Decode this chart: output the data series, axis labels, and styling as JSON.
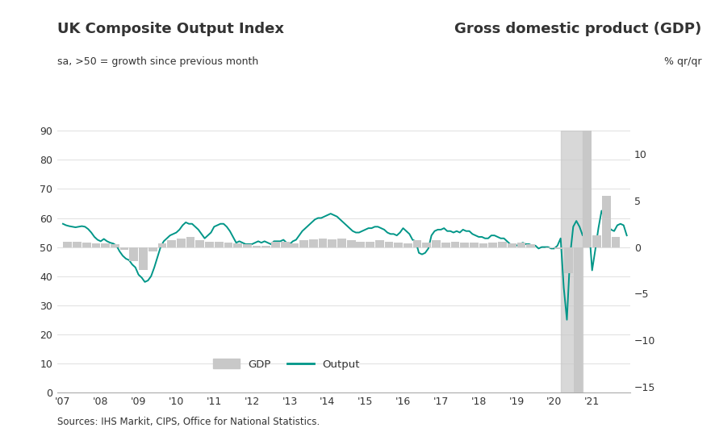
{
  "title_left": "UK Composite Output Index",
  "subtitle_left": "sa, >50 = growth since previous month",
  "title_right": "Gross domestic product (GDP)",
  "subtitle_right": "% qr/qr",
  "source": "Sources: IHS Markit, CIPS, Office for National Statistics.",
  "output_color": "#009688",
  "gdp_color": "#C8C8C8",
  "shade_color": "#C8C8C8",
  "background_color": "#FFFFFF",
  "text_color": "#333333",
  "ylim_left": [
    0,
    90
  ],
  "ylim_right": [
    -15,
    12.5
  ],
  "yticks_left": [
    0,
    10,
    20,
    30,
    40,
    50,
    60,
    70,
    80,
    90
  ],
  "yticks_right": [
    -15,
    -10,
    -5,
    0,
    5,
    10
  ],
  "shade_start": 2020.17,
  "shade_end": 2020.75,
  "xlim": [
    2006.85,
    2022.0
  ],
  "xtick_years": [
    2007,
    2008,
    2009,
    2010,
    2011,
    2012,
    2013,
    2014,
    2015,
    2016,
    2017,
    2018,
    2019,
    2020,
    2021
  ],
  "output_x": [
    2007.0,
    2007.083,
    2007.167,
    2007.25,
    2007.333,
    2007.417,
    2007.5,
    2007.583,
    2007.667,
    2007.75,
    2007.833,
    2007.917,
    2008.0,
    2008.083,
    2008.167,
    2008.25,
    2008.333,
    2008.417,
    2008.5,
    2008.583,
    2008.667,
    2008.75,
    2008.833,
    2008.917,
    2009.0,
    2009.083,
    2009.167,
    2009.25,
    2009.333,
    2009.417,
    2009.5,
    2009.583,
    2009.667,
    2009.75,
    2009.833,
    2009.917,
    2010.0,
    2010.083,
    2010.167,
    2010.25,
    2010.333,
    2010.417,
    2010.5,
    2010.583,
    2010.667,
    2010.75,
    2010.833,
    2010.917,
    2011.0,
    2011.083,
    2011.167,
    2011.25,
    2011.333,
    2011.417,
    2011.5,
    2011.583,
    2011.667,
    2011.75,
    2011.833,
    2011.917,
    2012.0,
    2012.083,
    2012.167,
    2012.25,
    2012.333,
    2012.417,
    2012.5,
    2012.583,
    2012.667,
    2012.75,
    2012.833,
    2012.917,
    2013.0,
    2013.083,
    2013.167,
    2013.25,
    2013.333,
    2013.417,
    2013.5,
    2013.583,
    2013.667,
    2013.75,
    2013.833,
    2013.917,
    2014.0,
    2014.083,
    2014.167,
    2014.25,
    2014.333,
    2014.417,
    2014.5,
    2014.583,
    2014.667,
    2014.75,
    2014.833,
    2014.917,
    2015.0,
    2015.083,
    2015.167,
    2015.25,
    2015.333,
    2015.417,
    2015.5,
    2015.583,
    2015.667,
    2015.75,
    2015.833,
    2015.917,
    2016.0,
    2016.083,
    2016.167,
    2016.25,
    2016.333,
    2016.417,
    2016.5,
    2016.583,
    2016.667,
    2016.75,
    2016.833,
    2016.917,
    2017.0,
    2017.083,
    2017.167,
    2017.25,
    2017.333,
    2017.417,
    2017.5,
    2017.583,
    2017.667,
    2017.75,
    2017.833,
    2017.917,
    2018.0,
    2018.083,
    2018.167,
    2018.25,
    2018.333,
    2018.417,
    2018.5,
    2018.583,
    2018.667,
    2018.75,
    2018.833,
    2018.917,
    2019.0,
    2019.083,
    2019.167,
    2019.25,
    2019.333,
    2019.417,
    2019.5,
    2019.583,
    2019.667,
    2019.75,
    2019.833,
    2019.917,
    2020.0,
    2020.083,
    2020.167,
    2020.25,
    2020.333,
    2020.417,
    2020.5,
    2020.583,
    2020.667,
    2020.75,
    2020.833,
    2020.917,
    2021.0,
    2021.083,
    2021.167,
    2021.25,
    2021.333,
    2021.417,
    2021.5,
    2021.583,
    2021.667,
    2021.75,
    2021.833,
    2021.917
  ],
  "output_y": [
    58.0,
    57.5,
    57.2,
    57.0,
    56.8,
    57.0,
    57.2,
    57.0,
    56.2,
    55.0,
    53.5,
    52.5,
    52.0,
    52.8,
    52.0,
    51.5,
    51.2,
    50.5,
    48.5,
    47.0,
    46.0,
    45.5,
    44.0,
    43.0,
    40.5,
    39.5,
    38.0,
    38.5,
    40.0,
    43.0,
    46.5,
    50.0,
    52.0,
    53.0,
    54.0,
    54.5,
    55.0,
    56.0,
    57.5,
    58.5,
    58.0,
    58.0,
    57.0,
    56.0,
    54.5,
    53.0,
    54.0,
    55.0,
    57.0,
    57.5,
    58.0,
    58.0,
    57.0,
    55.5,
    53.5,
    51.5,
    52.0,
    51.5,
    51.0,
    51.0,
    51.0,
    51.5,
    52.0,
    51.5,
    52.0,
    51.5,
    51.0,
    52.0,
    52.0,
    52.0,
    52.5,
    51.5,
    51.0,
    52.0,
    52.5,
    54.0,
    55.5,
    56.5,
    57.5,
    58.5,
    59.5,
    60.0,
    60.0,
    60.5,
    61.0,
    61.5,
    61.0,
    60.5,
    59.5,
    58.5,
    57.5,
    56.5,
    55.5,
    55.0,
    55.0,
    55.5,
    56.0,
    56.5,
    56.5,
    57.0,
    57.0,
    56.5,
    56.0,
    55.0,
    54.5,
    54.5,
    54.0,
    55.0,
    56.5,
    55.5,
    54.5,
    52.5,
    52.0,
    48.0,
    47.5,
    48.0,
    49.5,
    54.0,
    55.5,
    56.0,
    56.0,
    56.5,
    55.5,
    55.5,
    55.0,
    55.5,
    55.0,
    56.0,
    55.5,
    55.5,
    54.5,
    54.0,
    53.5,
    53.5,
    53.0,
    53.0,
    54.0,
    54.0,
    53.5,
    53.0,
    53.0,
    52.0,
    51.0,
    50.5,
    50.5,
    51.0,
    51.5,
    51.0,
    51.0,
    50.5,
    50.5,
    49.5,
    50.0,
    50.0,
    50.0,
    49.5,
    49.5,
    50.5,
    53.0,
    36.0,
    25.0,
    47.0,
    57.0,
    59.0,
    57.0,
    54.0,
    56.0,
    57.0,
    42.0,
    49.0,
    56.5,
    62.5,
    59.5,
    57.5,
    56.0,
    55.5,
    57.5,
    58.0,
    57.5,
    54.0
  ],
  "gdp_x": [
    2007.125,
    2007.375,
    2007.625,
    2007.875,
    2008.125,
    2008.375,
    2008.625,
    2008.875,
    2009.125,
    2009.375,
    2009.625,
    2009.875,
    2010.125,
    2010.375,
    2010.625,
    2010.875,
    2011.125,
    2011.375,
    2011.625,
    2011.875,
    2012.125,
    2012.375,
    2012.625,
    2012.875,
    2013.125,
    2013.375,
    2013.625,
    2013.875,
    2014.125,
    2014.375,
    2014.625,
    2014.875,
    2015.125,
    2015.375,
    2015.625,
    2015.875,
    2016.125,
    2016.375,
    2016.625,
    2016.875,
    2017.125,
    2017.375,
    2017.625,
    2017.875,
    2018.125,
    2018.375,
    2018.625,
    2018.875,
    2019.125,
    2019.375,
    2019.625,
    2019.875,
    2020.125,
    2020.375,
    2020.625,
    2020.875,
    2021.125,
    2021.375,
    2021.625
  ],
  "gdp_y": [
    0.6,
    0.6,
    0.5,
    0.4,
    0.4,
    0.3,
    -0.3,
    -1.5,
    -2.5,
    -0.5,
    0.4,
    0.7,
    0.9,
    1.1,
    0.7,
    0.6,
    0.6,
    0.5,
    0.4,
    0.3,
    0.1,
    0.1,
    0.6,
    0.6,
    0.4,
    0.7,
    0.8,
    0.9,
    0.8,
    0.9,
    0.7,
    0.6,
    0.6,
    0.7,
    0.6,
    0.5,
    0.4,
    0.7,
    0.5,
    0.7,
    0.5,
    0.6,
    0.5,
    0.5,
    0.4,
    0.5,
    0.6,
    0.4,
    0.5,
    0.3,
    0.0,
    -0.1,
    -0.2,
    -2.8,
    -19.8,
    16.9,
    1.3,
    5.5,
    1.1
  ]
}
